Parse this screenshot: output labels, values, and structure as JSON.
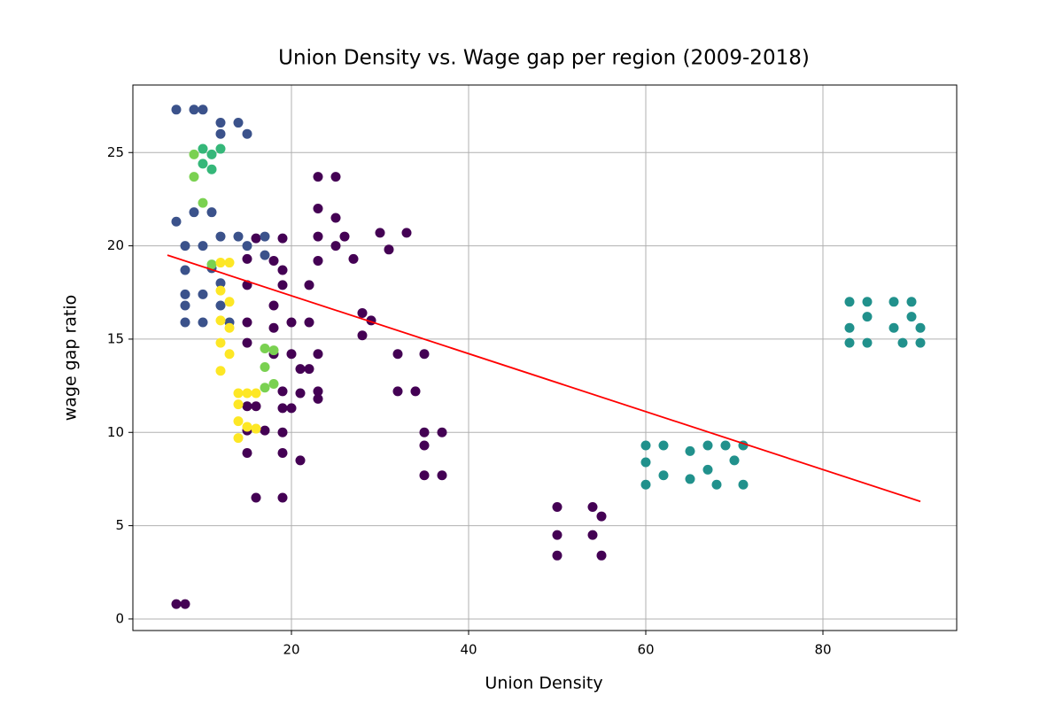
{
  "chart_data": {
    "type": "scatter",
    "title": "Union Density vs. Wage gap per region (2009-2018)",
    "x_label": "Union Density",
    "y_label": "wage gap ratio",
    "xlim": [
      2.1,
      95.1
    ],
    "ylim": [
      -0.62,
      28.62
    ],
    "xticks": [
      20,
      40,
      60,
      80
    ],
    "yticks": [
      0,
      5,
      10,
      15,
      20,
      25
    ],
    "grid": true,
    "series": [
      {
        "color": "#440154",
        "x": [
          7,
          8,
          16,
          15,
          15,
          15,
          15,
          15,
          15,
          15,
          16,
          19,
          18,
          19,
          19,
          18,
          18,
          18,
          19,
          19,
          19,
          19,
          19,
          20,
          20,
          21,
          21,
          21,
          22,
          22,
          23,
          23,
          23,
          23,
          23,
          23,
          23,
          25,
          25,
          25,
          26,
          27,
          28,
          28,
          29,
          30,
          31,
          33,
          32,
          32,
          34,
          35,
          35,
          35,
          35,
          37,
          37,
          50,
          50,
          50,
          54,
          54,
          55,
          55,
          22,
          20,
          17,
          16
        ],
        "values": [
          0.8,
          0.8,
          20.4,
          19.3,
          17.9,
          15.9,
          14.8,
          11.4,
          10.1,
          8.9,
          6.5,
          20.4,
          19.2,
          18.7,
          17.9,
          16.8,
          15.6,
          14.2,
          12.2,
          11.3,
          10,
          8.9,
          6.5,
          15.9,
          14.2,
          13.4,
          12.1,
          8.5,
          15.9,
          13.4,
          23.7,
          22,
          20.5,
          19.2,
          14.2,
          12.2,
          11.8,
          23.7,
          21.5,
          20,
          20.5,
          19.3,
          16.4,
          15.2,
          16,
          20.7,
          19.8,
          20.7,
          14.2,
          12.2,
          12.2,
          14.2,
          10,
          9.3,
          7.7,
          10,
          7.7,
          6,
          4.5,
          3.4,
          6,
          4.5,
          3.4,
          5.5,
          17.9,
          11.3,
          10.1,
          11.4
        ]
      },
      {
        "color": "#3b528b",
        "x": [
          7,
          9,
          10,
          12,
          14,
          12,
          15,
          7,
          9,
          11,
          8,
          8,
          8,
          8,
          8,
          10,
          10,
          10,
          12,
          12,
          12,
          14,
          15,
          17,
          17,
          11,
          13
        ],
        "values": [
          27.3,
          27.3,
          27.3,
          26.6,
          26.6,
          26,
          26,
          21.3,
          21.8,
          21.8,
          20,
          18.7,
          17.4,
          16.8,
          15.9,
          20,
          17.4,
          15.9,
          20.5,
          18,
          16.8,
          20.5,
          20,
          20.5,
          19.5,
          18.8,
          15.9
        ]
      },
      {
        "color": "#21918c",
        "x": [
          60,
          60,
          60,
          62,
          62,
          65,
          65,
          67,
          67,
          68,
          69,
          70,
          71,
          71,
          83,
          83,
          83,
          85,
          85,
          85,
          88,
          88,
          90,
          90,
          91,
          91,
          89
        ],
        "values": [
          9.3,
          8.4,
          7.2,
          9.3,
          7.7,
          9,
          7.5,
          9.3,
          8,
          7.2,
          9.3,
          8.5,
          7.2,
          9.3,
          17,
          15.6,
          14.8,
          17,
          16.2,
          14.8,
          17,
          15.6,
          17,
          16.2,
          14.8,
          15.6,
          14.8
        ]
      },
      {
        "color": "#35b779",
        "x": [
          10,
          11,
          11,
          10,
          12
        ],
        "values": [
          25.2,
          24.9,
          24.1,
          24.4,
          25.2
        ]
      },
      {
        "color": "#7ad151",
        "x": [
          9,
          9,
          10,
          17,
          18,
          17,
          17,
          18,
          11
        ],
        "values": [
          24.9,
          23.7,
          22.3,
          14.5,
          14.4,
          13.5,
          12.4,
          12.6,
          19
        ]
      },
      {
        "color": "#fde725",
        "x": [
          12,
          13,
          12,
          13,
          12,
          13,
          12,
          13,
          12,
          14,
          15,
          14,
          14,
          15,
          14,
          16,
          16
        ],
        "values": [
          19.1,
          19.1,
          17.6,
          17,
          16,
          15.6,
          14.8,
          14.2,
          13.3,
          12.1,
          12.1,
          11.5,
          10.6,
          10.3,
          9.7,
          10.2,
          12.1
        ]
      }
    ],
    "trend_line": {
      "color": "#ff0000",
      "x": [
        6,
        91
      ],
      "values": [
        19.5,
        6.3
      ]
    }
  }
}
